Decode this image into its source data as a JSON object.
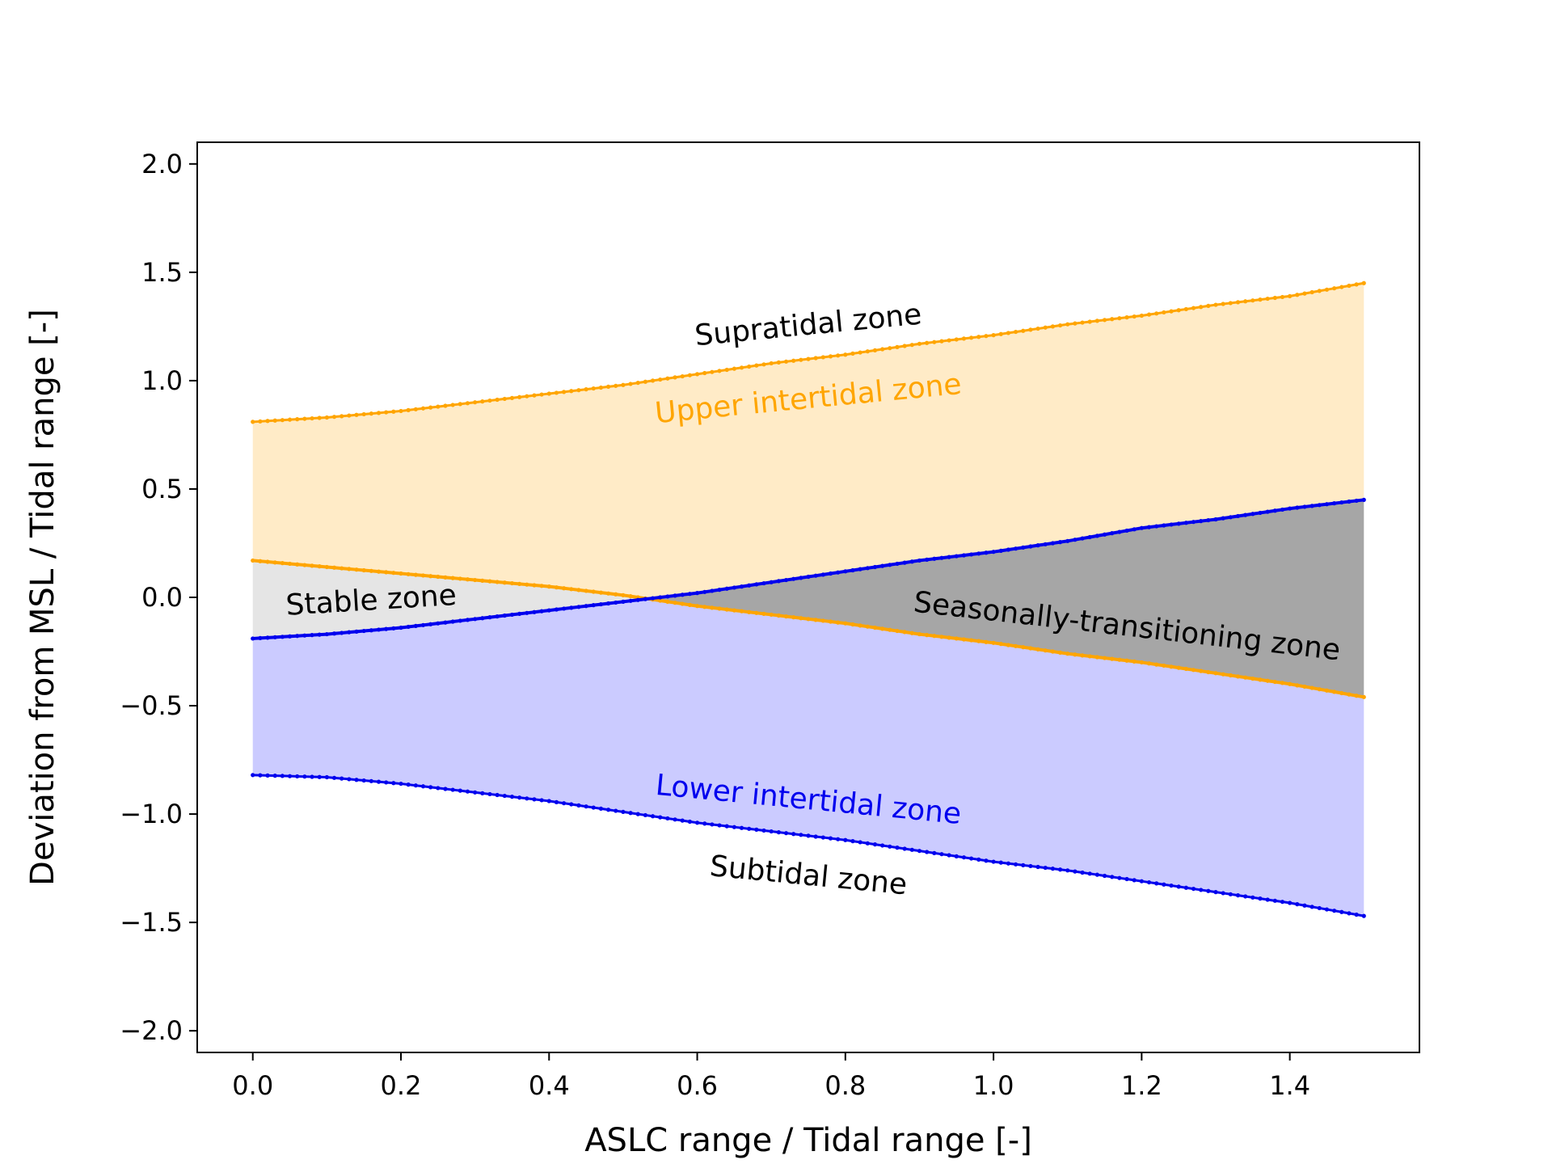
{
  "chart_data": {
    "type": "area",
    "xlabel": "ASLC range / Tidal range [-]",
    "ylabel": "Deviation from MSL / Tidal range [-]",
    "xlim": [
      -0.075,
      1.575
    ],
    "ylim": [
      -2.1,
      2.1
    ],
    "xticks": [
      0.0,
      0.2,
      0.4,
      0.6,
      0.8,
      1.0,
      1.2,
      1.4
    ],
    "yticks": [
      -2.0,
      -1.5,
      -1.0,
      -0.5,
      0.0,
      0.5,
      1.0,
      1.5,
      2.0
    ],
    "xticklabels": [
      "0.0",
      "0.2",
      "0.4",
      "0.6",
      "0.8",
      "1.0",
      "1.2",
      "1.4"
    ],
    "yticklabels": [
      "−2.0",
      "−1.5",
      "−1.0",
      "−0.5",
      "0.0",
      "0.5",
      "1.0",
      "1.5",
      "2.0"
    ],
    "grid": false,
    "x": [
      0.0,
      0.1,
      0.2,
      0.3,
      0.4,
      0.5,
      0.6,
      0.7,
      0.8,
      0.9,
      1.0,
      1.1,
      1.2,
      1.3,
      1.4,
      1.5
    ],
    "series": [
      {
        "key": "upper_orange",
        "color": "#ffa500",
        "values": [
          0.81,
          0.83,
          0.86,
          0.9,
          0.94,
          0.98,
          1.03,
          1.08,
          1.12,
          1.17,
          1.21,
          1.26,
          1.3,
          1.35,
          1.39,
          1.45
        ]
      },
      {
        "key": "lower_orange",
        "color": "#ffa500",
        "values": [
          0.17,
          0.14,
          0.11,
          0.08,
          0.05,
          0.01,
          -0.04,
          -0.08,
          -0.12,
          -0.17,
          -0.21,
          -0.26,
          -0.3,
          -0.35,
          -0.4,
          -0.46
        ]
      },
      {
        "key": "upper_blue",
        "color": "#0000ee",
        "values": [
          -0.19,
          -0.17,
          -0.14,
          -0.1,
          -0.06,
          -0.02,
          0.02,
          0.07,
          0.12,
          0.17,
          0.21,
          0.26,
          0.32,
          0.36,
          0.41,
          0.45
        ]
      },
      {
        "key": "lower_blue",
        "color": "#0000ee",
        "values": [
          -0.82,
          -0.83,
          -0.86,
          -0.9,
          -0.94,
          -0.99,
          -1.04,
          -1.08,
          -1.12,
          -1.17,
          -1.22,
          -1.26,
          -1.31,
          -1.36,
          -1.41,
          -1.47
        ]
      }
    ],
    "fills": {
      "upper_intertidal": "#ffebc7",
      "lower_intertidal": "#cbcbff",
      "stable": "#e5e5e5",
      "seasonal": "#a6a6a6"
    },
    "annotations": [
      {
        "key": "supratidal",
        "text": "Supratidal zone",
        "x": 0.75,
        "y": 1.25,
        "color": "#000000",
        "angle": -5.5
      },
      {
        "key": "upper_intertidal",
        "text": "Upper intertidal zone",
        "x": 0.75,
        "y": 0.91,
        "color": "#ffa500",
        "angle": -5.5
      },
      {
        "key": "stable",
        "text": "Stable zone",
        "x": 0.16,
        "y": -0.02,
        "color": "#000000",
        "angle": -3.5
      },
      {
        "key": "seasonal",
        "text": "Seasonally-transitioning zone",
        "x": 1.18,
        "y": -0.14,
        "color": "#000000",
        "angle": 6.5
      },
      {
        "key": "lower_intertidal",
        "text": "Lower intertidal zone",
        "x": 0.75,
        "y": -0.94,
        "color": "#0000ee",
        "angle": 5.5
      },
      {
        "key": "subtidal",
        "text": "Subtidal zone",
        "x": 0.75,
        "y": -1.29,
        "color": "#000000",
        "angle": 5.5
      }
    ]
  }
}
